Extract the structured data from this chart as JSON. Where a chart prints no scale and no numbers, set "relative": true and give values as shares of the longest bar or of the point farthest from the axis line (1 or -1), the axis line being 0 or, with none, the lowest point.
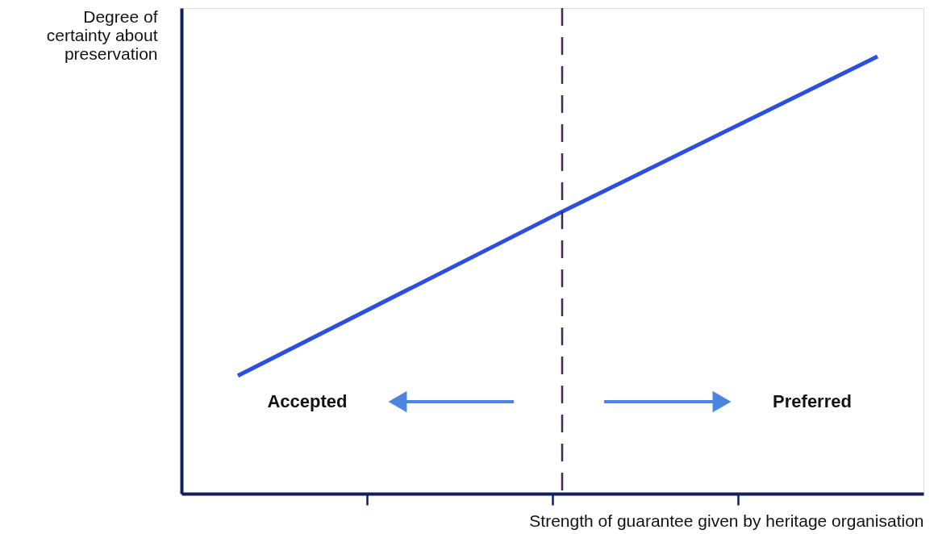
{
  "chart_data": {
    "type": "line",
    "relative": true,
    "categories": [
      null,
      null,
      null
    ],
    "series": [
      {
        "color": "#2b4fe0",
        "values": [
          0.27,
          0.64,
          1
        ]
      }
    ],
    "xlabel": "Strength of guarantee given by heritage organisation",
    "ylabel": "Degree of certainty about preservation",
    "annotations": [
      "Accepted",
      "Preferred"
    ],
    "grid": false,
    "marker": "none",
    "line_style": "solid",
    "tick_labels": false
  }
}
